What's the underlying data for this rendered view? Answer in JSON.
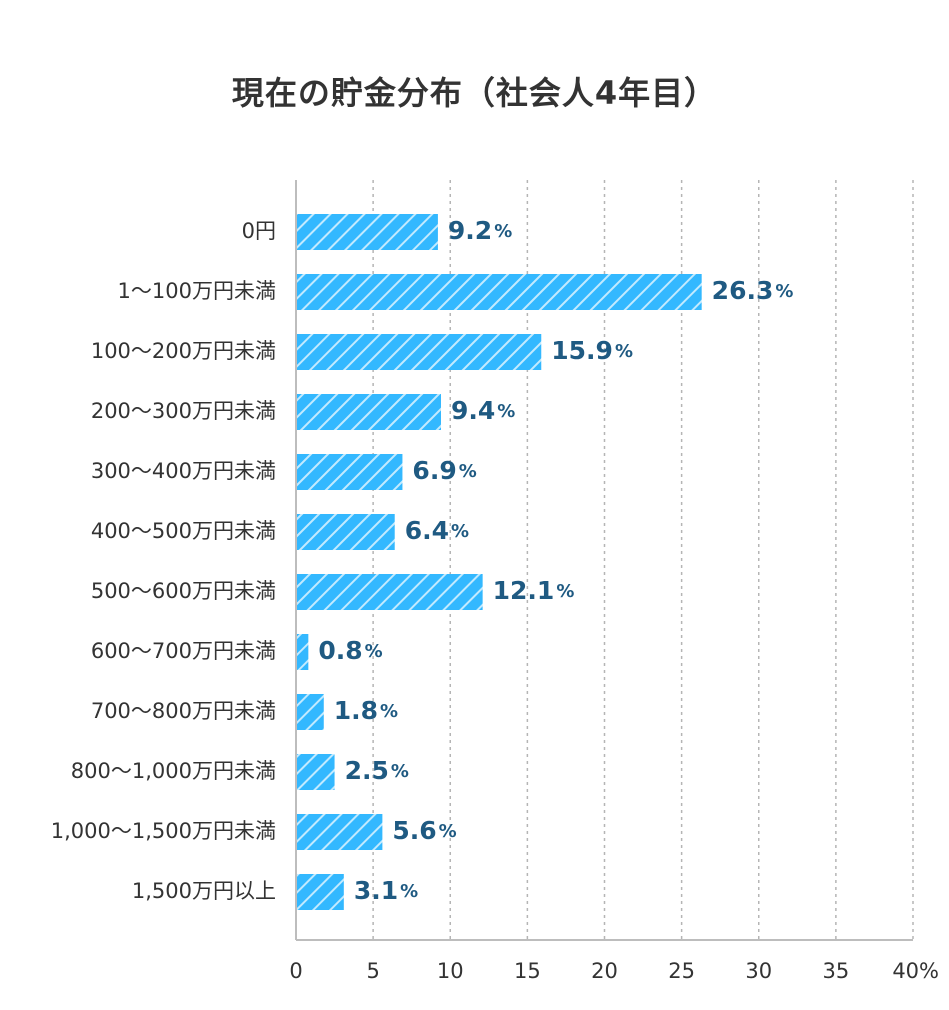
{
  "chart_data": {
    "type": "bar",
    "orientation": "horizontal",
    "title": "現在の貯金分布（社会人4年目）",
    "categories": [
      "0円",
      "1〜100万円未満",
      "100〜200万円未満",
      "200〜300万円未満",
      "300〜400万円未満",
      "400〜500万円未満",
      "500〜600万円未満",
      "600〜700万円未満",
      "700〜800万円未満",
      "800〜1,000万円未満",
      "1,000〜1,500万円未満",
      "1,500万円以上"
    ],
    "values": [
      9.2,
      26.3,
      15.9,
      9.4,
      6.9,
      6.4,
      12.1,
      0.8,
      1.8,
      2.5,
      5.6,
      3.1
    ],
    "value_unit": "%",
    "xlim": [
      0,
      40
    ],
    "x_ticks": [
      0,
      5,
      10,
      15,
      20,
      25,
      30,
      35,
      40
    ],
    "x_tick_labels": [
      "0",
      "5",
      "10",
      "15",
      "20",
      "25",
      "30",
      "35",
      "40%"
    ],
    "grid": "vertical-dashed",
    "bar_color": "#33b8ff",
    "bar_pattern": "diagonal-stripes",
    "value_label_color": "#1f5a82"
  }
}
